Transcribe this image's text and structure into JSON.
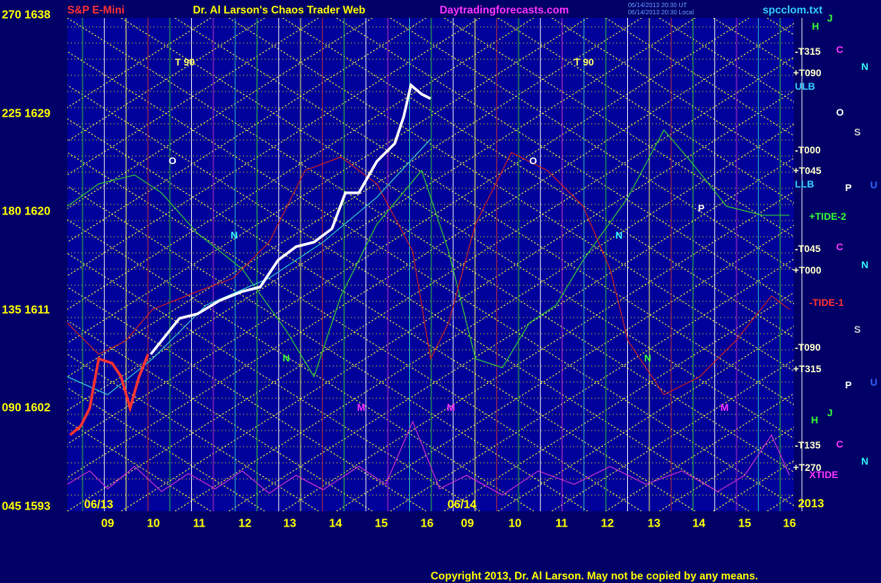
{
  "header": {
    "symbol": "S&P E-Mini",
    "title": "Dr. Al Larson's Chaos Trader Web",
    "url": "Daytradingforecasts.com",
    "timestamp_1": "06/14/2013 20:30 UT",
    "timestamp_2": "06/14/2013 20:30 Local",
    "file": "spcclom.txt"
  },
  "y_labels": [
    "270 1638",
    "225 1629",
    "180 1620",
    "135 1611",
    "090 1602",
    "045 1593"
  ],
  "x_labels": [
    "09",
    "10",
    "11",
    "12",
    "13",
    "14",
    "15",
    "16",
    "09",
    "10",
    "11",
    "12",
    "13",
    "14",
    "15",
    "16"
  ],
  "dates": [
    "06/13",
    "06/14",
    "2013"
  ],
  "right_labels": [
    "-T315",
    "+T090",
    "ULB",
    "-T000",
    "+T045",
    "LLB",
    "+TIDE-2",
    "-T045",
    "+T000",
    "-TIDE-1",
    "-T090",
    "+T315",
    "-T135",
    "+T270",
    "XTIDE"
  ],
  "markers": [
    "T   90",
    "T   90",
    "O",
    "O",
    "N",
    "N",
    "P",
    "N",
    "N",
    "M",
    "M",
    "M",
    "J",
    "H",
    "C",
    "N",
    "O",
    "S",
    "P",
    "U",
    "C",
    "N",
    "S",
    "P",
    "U",
    "H",
    "J",
    "C",
    "N"
  ],
  "footer": {
    "copyright": "Copyright 2013, Dr. Al Larson. May not be copied by any means."
  }
}
